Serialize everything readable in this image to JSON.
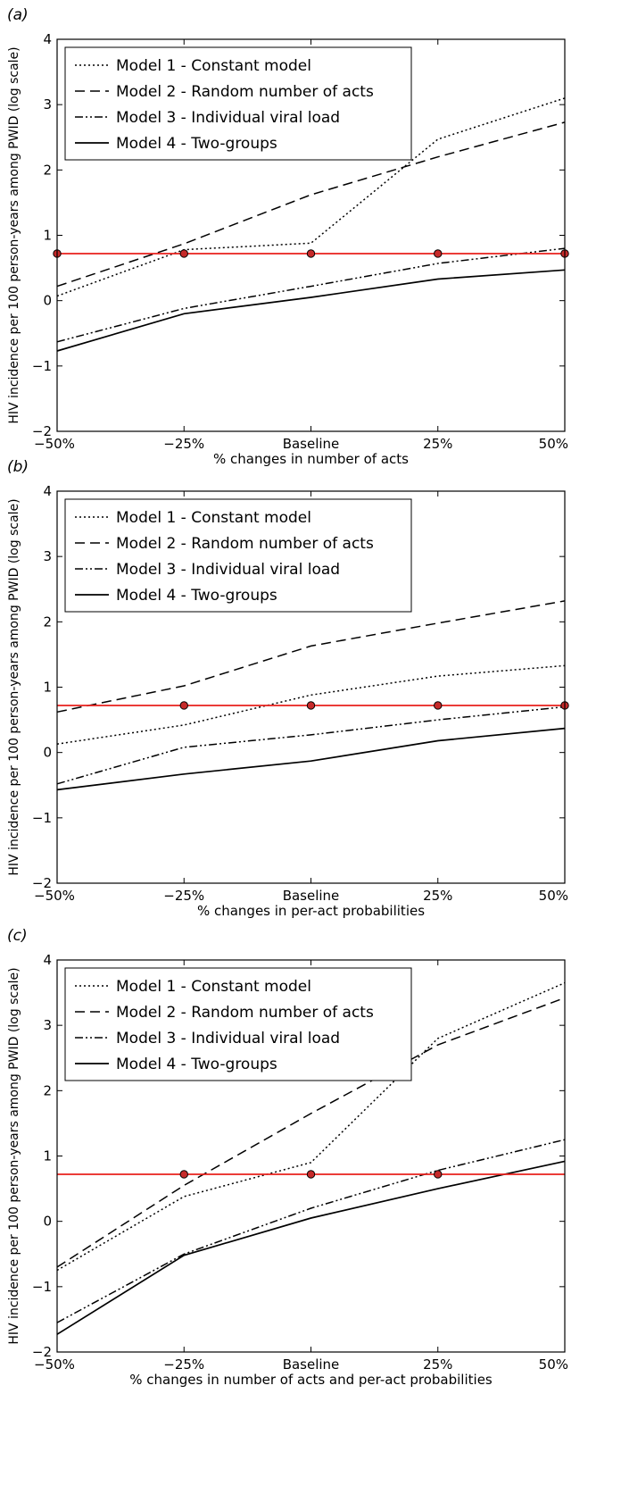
{
  "y_axis_label": "HIV incidence per 100 person-years among PWID (log scale)",
  "legend": [
    {
      "key": "m1",
      "label": "Model 1 - Constant model",
      "dash": "2,3"
    },
    {
      "key": "m2",
      "label": "Model 2 - Random number of acts",
      "dash": "11,6"
    },
    {
      "key": "m3",
      "label": "Model 3 - Individual viral load",
      "dash": "9,3,2,3,2,3"
    },
    {
      "key": "m4",
      "label": "Model 4 - Two-groups",
      "dash": ""
    }
  ],
  "colors": {
    "reference": "#e8201c",
    "marker_fill": "#c62a2a",
    "series": "#000000"
  },
  "chart_data": [
    {
      "panel": "(a)",
      "type": "line",
      "categories": [
        "−50%",
        "−25%",
        "Baseline",
        "25%",
        "50%"
      ],
      "xlabel": "% changes in number of acts",
      "ylim": [
        -2,
        4
      ],
      "yticks": [
        "−2",
        "−1",
        "0",
        "1",
        "2",
        "3",
        "4"
      ],
      "reference": {
        "value": 0.72,
        "marker_points": [
          0,
          1,
          2,
          3,
          4
        ]
      },
      "series": [
        {
          "key": "m1",
          "values": [
            0.07,
            0.78,
            0.88,
            2.47,
            3.1
          ]
        },
        {
          "key": "m2",
          "values": [
            0.22,
            0.87,
            1.62,
            2.2,
            2.73
          ]
        },
        {
          "key": "m3",
          "values": [
            -0.63,
            -0.12,
            0.22,
            0.57,
            0.8
          ]
        },
        {
          "key": "m4",
          "values": [
            -0.77,
            -0.2,
            0.05,
            0.33,
            0.47
          ]
        }
      ]
    },
    {
      "panel": "(b)",
      "type": "line",
      "categories": [
        "−50%",
        "−25%",
        "Baseline",
        "25%",
        "50%"
      ],
      "xlabel": "% changes in per-act probabilities",
      "ylim": [
        -2,
        4
      ],
      "yticks": [
        "−2",
        "−1",
        "0",
        "1",
        "2",
        "3",
        "4"
      ],
      "reference": {
        "value": 0.72,
        "marker_points": [
          1,
          2,
          3,
          4
        ]
      },
      "series": [
        {
          "key": "m1",
          "values": [
            0.13,
            0.42,
            0.88,
            1.17,
            1.33
          ]
        },
        {
          "key": "m2",
          "values": [
            0.62,
            1.02,
            1.63,
            1.98,
            2.32
          ]
        },
        {
          "key": "m3",
          "values": [
            -0.48,
            0.08,
            0.27,
            0.5,
            0.7
          ]
        },
        {
          "key": "m4",
          "values": [
            -0.57,
            -0.33,
            -0.13,
            0.18,
            0.37
          ]
        }
      ]
    },
    {
      "panel": "(c)",
      "type": "line",
      "categories": [
        "−50%",
        "−25%",
        "Baseline",
        "25%",
        "50%"
      ],
      "xlabel": "% changes in number of acts and per-act probabilities",
      "ylim": [
        -2,
        4
      ],
      "yticks": [
        "−2",
        "−1",
        "0",
        "1",
        "2",
        "3",
        "4"
      ],
      "reference": {
        "value": 0.72,
        "marker_points": [
          1,
          2,
          3
        ]
      },
      "series": [
        {
          "key": "m1",
          "values": [
            -0.75,
            0.38,
            0.9,
            2.8,
            3.65
          ]
        },
        {
          "key": "m2",
          "values": [
            -0.7,
            0.55,
            1.65,
            2.7,
            3.42
          ]
        },
        {
          "key": "m3",
          "values": [
            -1.55,
            -0.5,
            0.2,
            0.78,
            1.25
          ]
        },
        {
          "key": "m4",
          "values": [
            -1.73,
            -0.52,
            0.05,
            0.5,
            0.92
          ]
        }
      ]
    }
  ]
}
